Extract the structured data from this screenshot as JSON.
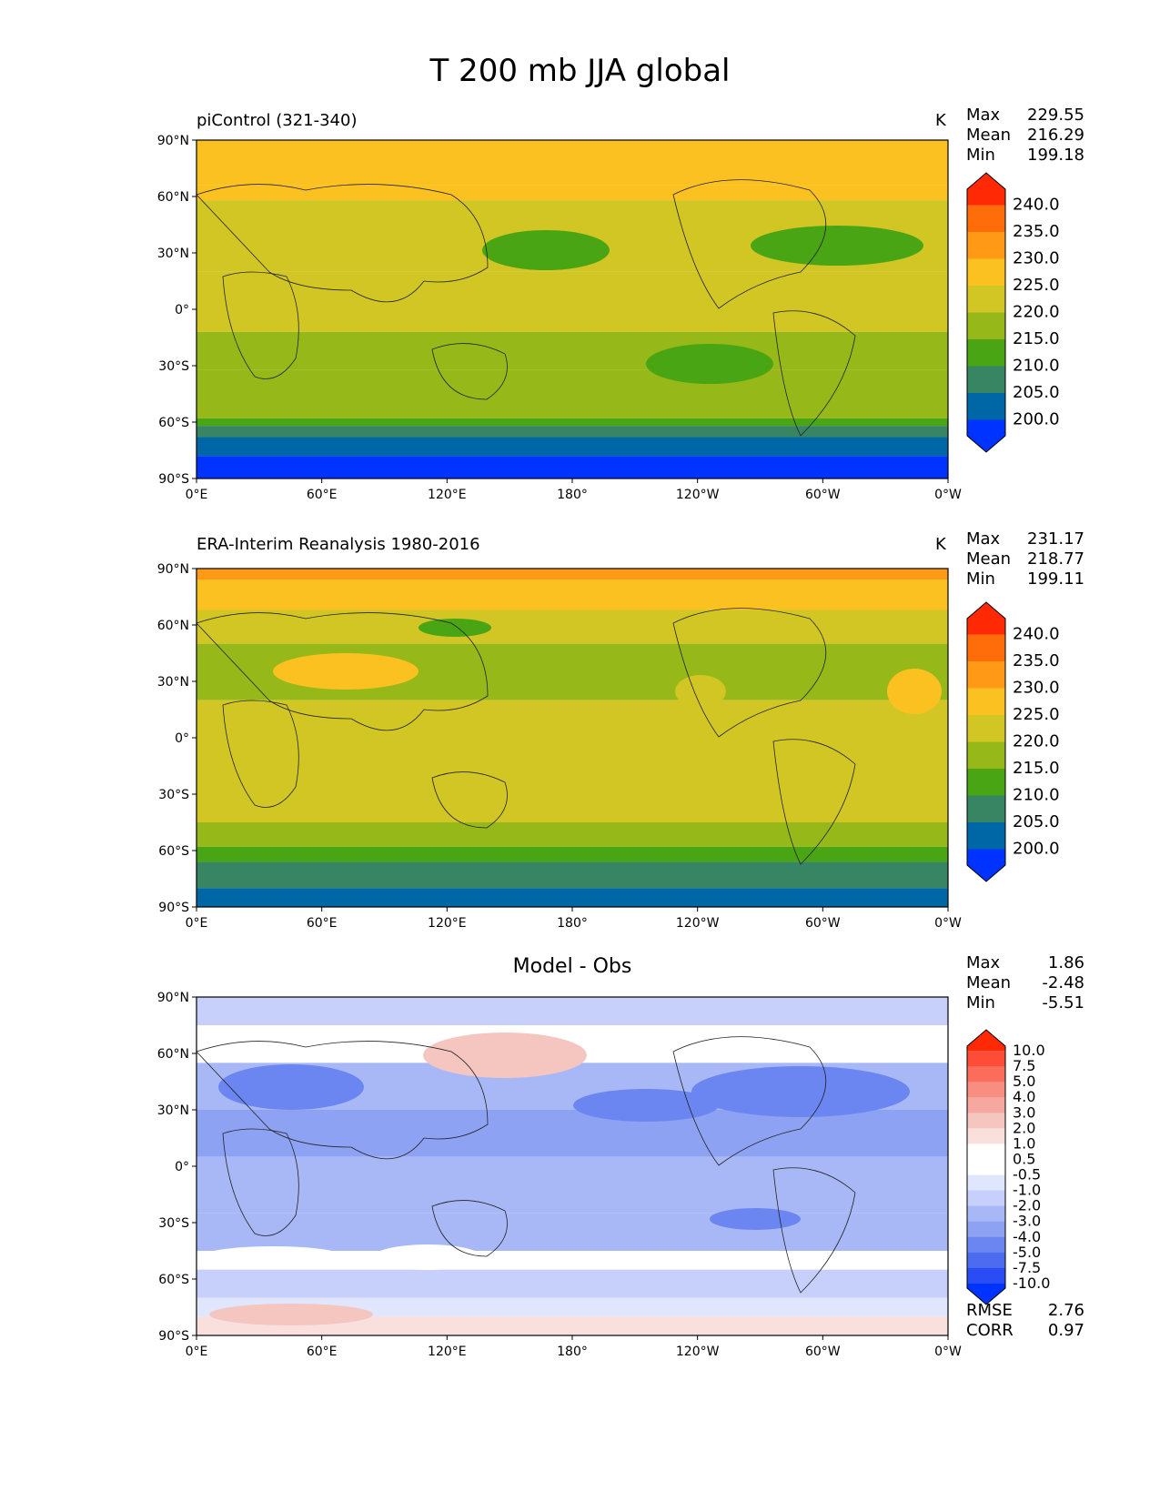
{
  "figure": {
    "title": "T 200 mb JJA global"
  },
  "axes": {
    "lat_ticks": [
      "90°N",
      "60°N",
      "30°N",
      "0°",
      "30°S",
      "60°S",
      "90°S"
    ],
    "lon_ticks": [
      "0°E",
      "60°E",
      "120°E",
      "180°",
      "120°W",
      "60°W",
      "0°W"
    ]
  },
  "panels": [
    {
      "title": "piControl (321-340)",
      "units": "K",
      "stats": [
        {
          "label": "Max",
          "value": "229.55"
        },
        {
          "label": "Mean",
          "value": "216.29"
        },
        {
          "label": "Min",
          "value": "199.18"
        }
      ],
      "colorbar": {
        "labels": [
          "240.0",
          "235.0",
          "230.0",
          "225.0",
          "220.0",
          "215.0",
          "210.0",
          "205.0",
          "200.0"
        ],
        "colors": [
          "#ff2a05",
          "#ff6c0a",
          "#ff9916",
          "#fbc121",
          "#d1c623",
          "#97b819",
          "#4aa514",
          "#378562",
          "#0067a7",
          "#0033ff"
        ]
      },
      "bands_lat": [
        90,
        66,
        58,
        20,
        -12,
        -32,
        -58,
        -62,
        -68,
        -78,
        -90
      ],
      "band_colors": [
        "#fbc121",
        "#fbc121",
        "#d1c623",
        "#d1c623",
        "#97b819",
        "#97b819",
        "#4aa514",
        "#378562",
        "#0067a7",
        "#0033ff"
      ]
    },
    {
      "title": "ERA-Interim Reanalysis 1980-2016",
      "units": "K",
      "stats": [
        {
          "label": "Max",
          "value": "231.17"
        },
        {
          "label": "Mean",
          "value": "218.77"
        },
        {
          "label": "Min",
          "value": "199.11"
        }
      ],
      "colorbar": {
        "labels": [
          "240.0",
          "235.0",
          "230.0",
          "225.0",
          "220.0",
          "215.0",
          "210.0",
          "205.0",
          "200.0"
        ],
        "colors": [
          "#ff2a05",
          "#ff6c0a",
          "#ff9916",
          "#fbc121",
          "#d1c623",
          "#97b819",
          "#4aa514",
          "#378562",
          "#0067a7",
          "#0033ff"
        ]
      },
      "bands_lat": [
        90,
        84,
        68,
        50,
        20,
        -15,
        -45,
        -58,
        -66,
        -80,
        -90
      ],
      "band_colors": [
        "#ff9916",
        "#fbc121",
        "#d1c623",
        "#97b819",
        "#d1c623",
        "#d1c623",
        "#97b819",
        "#4aa514",
        "#378562",
        "#0067a7"
      ]
    },
    {
      "title": "Model - Obs",
      "units": "",
      "stats": [
        {
          "label": "Max",
          "value": "1.86"
        },
        {
          "label": "Mean",
          "value": "-2.48"
        },
        {
          "label": "Min",
          "value": "-5.51"
        }
      ],
      "extra_stats": [
        {
          "label": "RMSE",
          "value": "2.76"
        },
        {
          "label": "CORR",
          "value": "0.97"
        }
      ],
      "colorbar": {
        "labels": [
          "10.0",
          "7.5",
          "5.0",
          "4.0",
          "3.0",
          "2.0",
          "1.0",
          "0.5",
          "-0.5",
          "-1.0",
          "-2.0",
          "-3.0",
          "-4.0",
          "-5.0",
          "-7.5",
          "-10.0"
        ],
        "colors": [
          "#ff2a05",
          "#fe4d36",
          "#fb6c5b",
          "#f88e80",
          "#f6a8a0",
          "#f5c6c0",
          "#fae0dc",
          "#ffffff",
          "#ffffff",
          "#e0e6fb",
          "#c6d0fa",
          "#a8b8f7",
          "#8ea2f4",
          "#6c86f1",
          "#4d6bef",
          "#2a4cf5",
          "#0033ff"
        ]
      },
      "bands_lat": [
        90,
        75,
        55,
        30,
        5,
        -25,
        -45,
        -55,
        -70,
        -80,
        -90
      ],
      "band_colors": [
        "#c6d0fa",
        "#ffffff",
        "#a8b8f7",
        "#8ea2f4",
        "#a8b8f7",
        "#a8b8f7",
        "#ffffff",
        "#c6d0fa",
        "#e0e6fb",
        "#fae0dc"
      ]
    }
  ]
}
